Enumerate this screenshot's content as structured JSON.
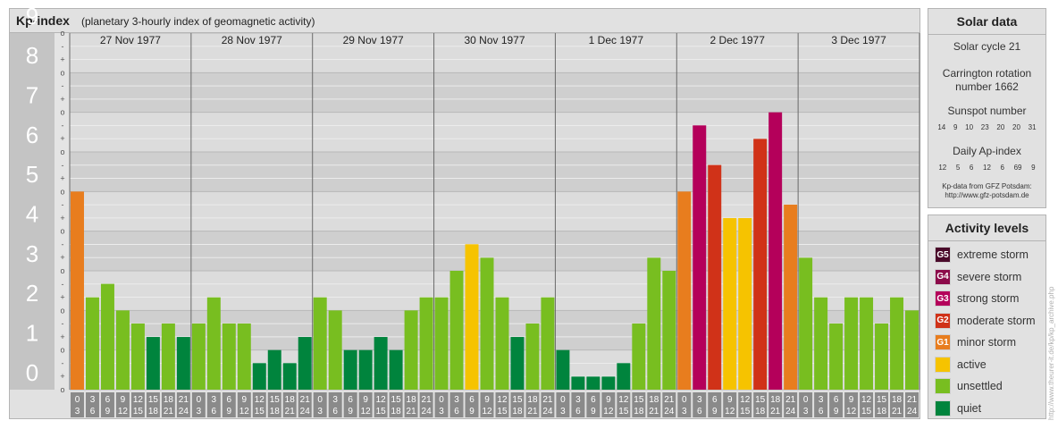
{
  "title": {
    "main": "Kp-index",
    "sub": "(planetary 3-hourly index of geomagnetic activity)"
  },
  "chart_data": {
    "type": "bar",
    "ylim": [
      0,
      9
    ],
    "yticks": [
      "0",
      "1",
      "2",
      "3",
      "4",
      "5",
      "6",
      "7",
      "8",
      "9"
    ],
    "minor_ticks": [
      "o",
      "+",
      "-"
    ],
    "days": [
      "27 Nov 1977",
      "28 Nov 1977",
      "29 Nov 1977",
      "30 Nov 1977",
      "1 Dec 1977",
      "2 Dec 1977",
      "3 Dec 1977"
    ],
    "hour_labels": [
      [
        "0",
        "3"
      ],
      [
        "3",
        "6"
      ],
      [
        "6",
        "9"
      ],
      [
        "9",
        "12"
      ],
      [
        "12",
        "15"
      ],
      [
        "15",
        "18"
      ],
      [
        "18",
        "21"
      ],
      [
        "21",
        "24"
      ]
    ],
    "values": [
      5.0,
      2.33,
      2.67,
      2.0,
      1.67,
      1.33,
      1.67,
      1.33,
      1.67,
      2.33,
      1.67,
      1.67,
      0.67,
      1.0,
      0.67,
      1.33,
      2.33,
      2.0,
      1.0,
      1.0,
      1.33,
      1.0,
      2.0,
      2.33,
      2.33,
      3.0,
      3.67,
      3.33,
      2.33,
      1.33,
      1.67,
      2.33,
      1.0,
      0.33,
      0.33,
      0.33,
      0.67,
      1.67,
      3.33,
      3.0,
      5.0,
      6.67,
      5.67,
      4.33,
      4.33,
      6.33,
      7.0,
      4.67,
      3.33,
      2.33,
      1.67,
      2.33,
      2.33,
      1.67,
      2.33,
      2.0
    ],
    "colors": {
      "extreme": "#4a0a2a",
      "severe": "#8c0a4a",
      "strong": "#b4005a",
      "moderate": "#d03218",
      "minor": "#e87d1e",
      "active": "#f6c300",
      "unsettled": "#78be20",
      "quiet": "#00843d"
    }
  },
  "solar": {
    "title": "Solar data",
    "cycle": "Solar cycle 21",
    "carrington_1": "Carrington rotation",
    "carrington_2": "number 1662",
    "sunspot_title": "Sunspot number",
    "sunspot_values": [
      "14",
      "9",
      "10",
      "23",
      "20",
      "20",
      "31"
    ],
    "ap_title": "Daily Ap-index",
    "ap_values": [
      "12",
      "5",
      "6",
      "12",
      "6",
      "69",
      "9"
    ],
    "source_1": "Kp-data from GFZ Potsdam:",
    "source_2": "http://www.gfz-potsdam.de"
  },
  "levels": {
    "title": "Activity levels",
    "items": [
      {
        "badge": "G5",
        "label": "extreme storm",
        "color": "#4a0a2a"
      },
      {
        "badge": "G4",
        "label": "severe storm",
        "color": "#8c0a4a"
      },
      {
        "badge": "G3",
        "label": "strong storm",
        "color": "#b4005a"
      },
      {
        "badge": "G2",
        "label": "moderate storm",
        "color": "#d03218"
      },
      {
        "badge": "G1",
        "label": "minor storm",
        "color": "#e87d1e"
      },
      {
        "badge": "",
        "label": "active",
        "color": "#f6c300"
      },
      {
        "badge": "",
        "label": "unsettled",
        "color": "#78be20"
      },
      {
        "badge": "",
        "label": "quiet",
        "color": "#00843d"
      }
    ]
  },
  "credit": "http://www.theurer-it.de/kp/kp_archive.php"
}
